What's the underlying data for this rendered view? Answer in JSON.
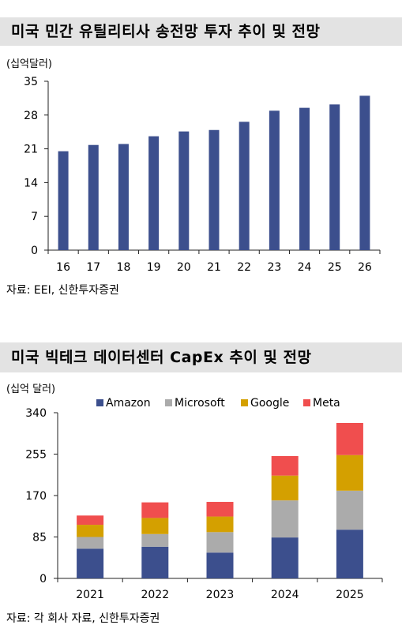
{
  "chart_data": [
    {
      "type": "bar",
      "title": "미국 민간 유틸리티사 송전망 투자 추이 및 전망",
      "unit": "(십억달러)",
      "categories": [
        "16",
        "17",
        "18",
        "19",
        "20",
        "21",
        "22",
        "23",
        "24",
        "25",
        "26"
      ],
      "values": [
        20.5,
        21.8,
        22.0,
        23.6,
        24.6,
        24.9,
        26.6,
        28.9,
        29.5,
        30.2,
        32.0
      ],
      "ylim": [
        0,
        35
      ],
      "yticks": [
        "0",
        "7",
        "14",
        "21",
        "28",
        "35"
      ],
      "bar_color": "#3c4f8d",
      "source": "자료: EEI, 신한투자증권"
    },
    {
      "type": "bar",
      "stacked": true,
      "title": "미국 빅테크 데이터센터 CapEx 추이 및 전망",
      "unit": "(십억 달러)",
      "categories": [
        "2021",
        "2022",
        "2023",
        "2024",
        "2025"
      ],
      "series": [
        {
          "name": "Amazon",
          "color": "#3c4f8d",
          "values": [
            61,
            65,
            53,
            84,
            100
          ]
        },
        {
          "name": "Microsoft",
          "color": "#ababab",
          "values": [
            24,
            26,
            42,
            76,
            80
          ]
        },
        {
          "name": "Google",
          "color": "#d4a000",
          "values": [
            25,
            33,
            32,
            51,
            73
          ]
        },
        {
          "name": "Meta",
          "color": "#f04e4e",
          "values": [
            19,
            32,
            30,
            40,
            66
          ]
        }
      ],
      "ylim": [
        0,
        340
      ],
      "yticks": [
        "0",
        "85",
        "170",
        "255",
        "340"
      ],
      "legend_position": "top",
      "source": "자료: 각 회사 자료, 신한투자증권"
    }
  ]
}
